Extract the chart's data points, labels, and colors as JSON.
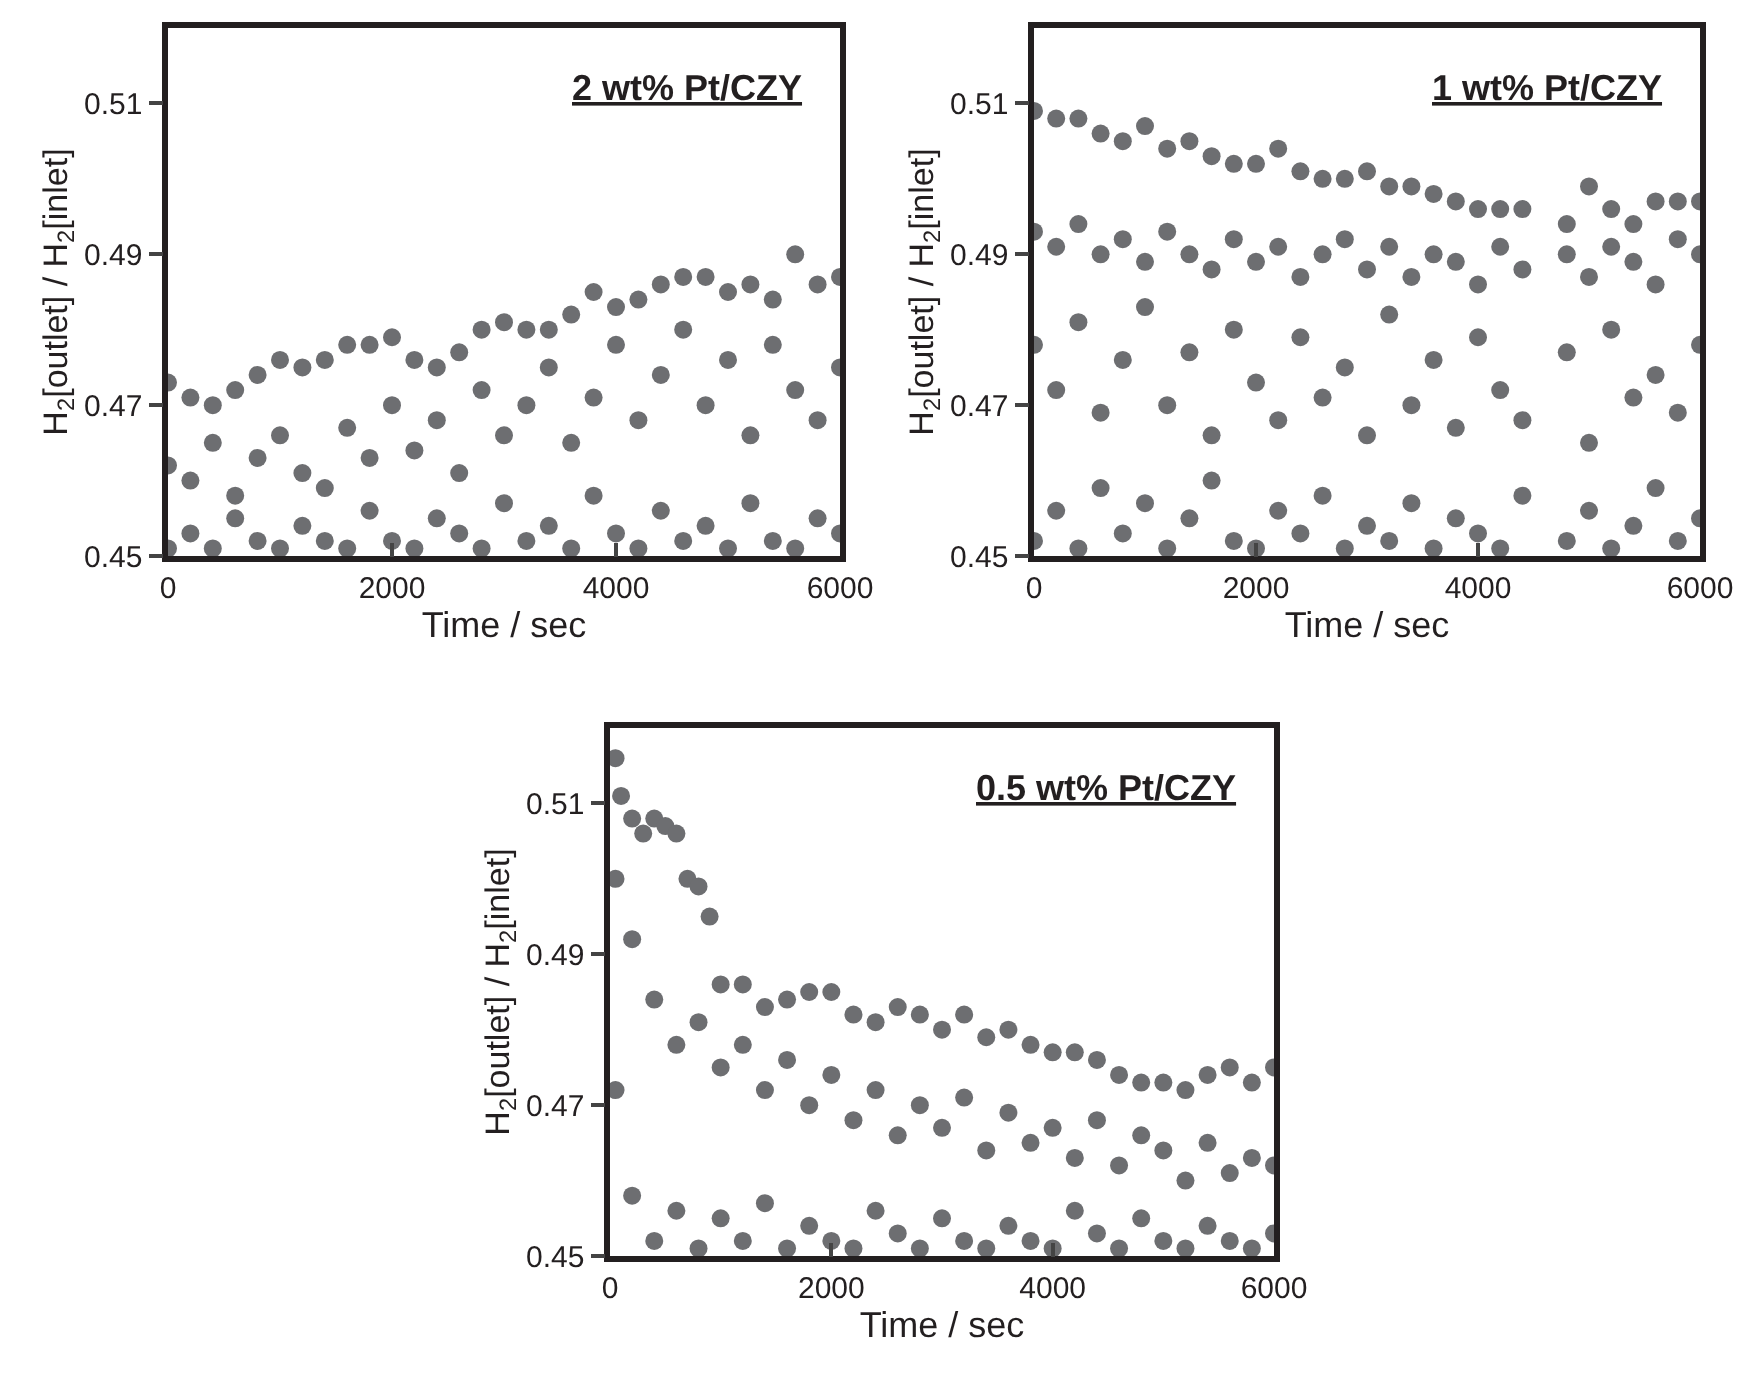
{
  "chart_data": [
    {
      "type": "scatter",
      "title": "2 wt% Pt/CZY",
      "xlabel": "Time / sec",
      "ylabel": "H$_{2}$[outlet] / H$_{2}$[inlet]",
      "xlim": [
        0,
        6000
      ],
      "xticks": [
        0,
        2000,
        4000,
        6000
      ],
      "ylim": [
        0.45,
        0.52
      ],
      "yticks": [
        0.45,
        0.47,
        0.49,
        0.51
      ],
      "marker": "circle",
      "series": [
        {
          "color": "#6d6e71",
          "x": [
            0,
            200,
            400,
            600,
            800,
            1000,
            1200,
            1400,
            1600,
            1800,
            2000,
            2200,
            2400,
            2600,
            2800,
            3000,
            3200,
            3400,
            3600,
            3800,
            4000,
            4200,
            4400,
            4600,
            4800,
            5000,
            5200,
            5400,
            5600,
            5800,
            6000,
            0,
            200,
            400,
            600,
            800,
            1000,
            1200,
            1400,
            1600,
            1800,
            2000,
            2200,
            2400,
            2600,
            2800,
            3000,
            3200,
            3400,
            3600,
            3800,
            4000,
            4200,
            4400,
            4600,
            4800,
            5000,
            5200,
            5400,
            5600,
            5800,
            6000,
            0,
            200,
            400,
            600,
            800,
            1000,
            1200,
            1400,
            1600,
            1800,
            2000,
            2200,
            2400,
            2600,
            2800,
            3000,
            3200,
            3400,
            3600,
            3800,
            4000,
            4200,
            4400,
            4600,
            4800,
            5000,
            5200,
            5400,
            5600,
            5800,
            6000
          ],
          "values": [
            0.473,
            0.471,
            0.47,
            0.472,
            0.474,
            0.476,
            0.475,
            0.476,
            0.478,
            0.478,
            0.479,
            0.476,
            0.475,
            0.477,
            0.48,
            0.481,
            0.48,
            0.48,
            0.482,
            0.485,
            0.483,
            0.484,
            0.486,
            0.487,
            0.487,
            0.485,
            0.486,
            0.484,
            0.49,
            0.486,
            0.487,
            0.462,
            0.46,
            0.465,
            0.458,
            0.463,
            0.466,
            0.461,
            0.459,
            0.467,
            0.463,
            0.47,
            0.464,
            0.468,
            0.461,
            0.472,
            0.466,
            0.47,
            0.475,
            0.465,
            0.471,
            0.478,
            0.468,
            0.474,
            0.48,
            0.47,
            0.476,
            0.466,
            0.478,
            0.472,
            0.468,
            0.475,
            0.451,
            0.453,
            0.451,
            0.455,
            0.452,
            0.451,
            0.454,
            0.452,
            0.451,
            0.456,
            0.452,
            0.451,
            0.455,
            0.453,
            0.451,
            0.457,
            0.452,
            0.454,
            0.451,
            0.458,
            0.453,
            0.451,
            0.456,
            0.452,
            0.454,
            0.451,
            0.457,
            0.452,
            0.451,
            0.455,
            0.453
          ]
        }
      ]
    },
    {
      "type": "scatter",
      "title": "1 wt% Pt/CZY",
      "xlabel": "Time / sec",
      "ylabel": "H$_{2}$[outlet] / H$_{2}$[inlet]",
      "xlim": [
        0,
        6000
      ],
      "xticks": [
        0,
        2000,
        4000,
        6000
      ],
      "ylim": [
        0.45,
        0.52
      ],
      "yticks": [
        0.45,
        0.47,
        0.49,
        0.51
      ],
      "marker": "circle",
      "series": [
        {
          "color": "#6d6e71",
          "x": [
            0,
            200,
            400,
            600,
            800,
            1000,
            1200,
            1400,
            1600,
            1800,
            2000,
            2200,
            2400,
            2600,
            2800,
            3000,
            3200,
            3400,
            3600,
            3800,
            4000,
            4200,
            4400,
            4800,
            5000,
            5200,
            5400,
            5600,
            5800,
            6000,
            0,
            200,
            400,
            600,
            800,
            1000,
            1200,
            1400,
            1600,
            1800,
            2000,
            2200,
            2400,
            2600,
            2800,
            3000,
            3200,
            3400,
            3600,
            3800,
            4000,
            4200,
            4400,
            4800,
            5000,
            5200,
            5400,
            5600,
            5800,
            6000,
            0,
            200,
            400,
            600,
            800,
            1000,
            1200,
            1400,
            1600,
            1800,
            2000,
            2200,
            2400,
            2600,
            2800,
            3000,
            3200,
            3400,
            3600,
            3800,
            4000,
            4200,
            4400,
            4800,
            5000,
            5200,
            5400,
            5600,
            5800,
            6000,
            0,
            200,
            400,
            600,
            800,
            1000,
            1200,
            1400,
            1600,
            1800,
            2000,
            2200,
            2400,
            2600,
            2800,
            3000,
            3200,
            3400,
            3600,
            3800,
            4000,
            4200,
            4400,
            4800,
            5000,
            5200,
            5400,
            5600,
            5800,
            6000
          ],
          "values": [
            0.509,
            0.508,
            0.508,
            0.506,
            0.505,
            0.507,
            0.504,
            0.505,
            0.503,
            0.502,
            0.502,
            0.504,
            0.501,
            0.5,
            0.5,
            0.501,
            0.499,
            0.499,
            0.498,
            0.497,
            0.496,
            0.496,
            0.496,
            0.494,
            0.499,
            0.496,
            0.494,
            0.497,
            0.497,
            0.497,
            0.493,
            0.491,
            0.494,
            0.49,
            0.492,
            0.489,
            0.493,
            0.49,
            0.488,
            0.492,
            0.489,
            0.491,
            0.487,
            0.49,
            0.492,
            0.488,
            0.491,
            0.487,
            0.49,
            0.489,
            0.486,
            0.491,
            0.488,
            0.49,
            0.487,
            0.491,
            0.489,
            0.486,
            0.492,
            0.49,
            0.478,
            0.472,
            0.481,
            0.469,
            0.476,
            0.483,
            0.47,
            0.477,
            0.466,
            0.48,
            0.473,
            0.468,
            0.479,
            0.471,
            0.475,
            0.466,
            0.482,
            0.47,
            0.476,
            0.467,
            0.479,
            0.472,
            0.468,
            0.477,
            0.465,
            0.48,
            0.471,
            0.474,
            0.469,
            0.478,
            0.452,
            0.456,
            0.451,
            0.459,
            0.453,
            0.457,
            0.451,
            0.455,
            0.46,
            0.452,
            0.451,
            0.456,
            0.453,
            0.458,
            0.451,
            0.454,
            0.452,
            0.457,
            0.451,
            0.455,
            0.453,
            0.451,
            0.458,
            0.452,
            0.456,
            0.451,
            0.454,
            0.459,
            0.452,
            0.455
          ]
        }
      ]
    },
    {
      "type": "scatter",
      "title": "0.5 wt% Pt/CZY",
      "xlabel": "Time / sec",
      "ylabel": "H$_{2}$[outlet] / H$_{2}$[inlet]",
      "xlim": [
        0,
        6000
      ],
      "xticks": [
        0,
        2000,
        4000,
        6000
      ],
      "ylim": [
        0.45,
        0.52
      ],
      "yticks": [
        0.45,
        0.47,
        0.49,
        0.51
      ],
      "marker": "circle",
      "series": [
        {
          "color": "#6d6e71",
          "x": [
            50,
            100,
            200,
            300,
            400,
            500,
            600,
            700,
            800,
            900,
            1000,
            1200,
            1400,
            1600,
            1800,
            2000,
            2200,
            2400,
            2600,
            2800,
            3000,
            3200,
            3400,
            3600,
            3800,
            4000,
            4200,
            4400,
            4600,
            4800,
            5000,
            5200,
            5400,
            5600,
            5800,
            6000,
            50,
            200,
            400,
            600,
            800,
            1000,
            1200,
            1400,
            1600,
            1800,
            2000,
            2200,
            2400,
            2600,
            2800,
            3000,
            3200,
            3400,
            3600,
            3800,
            4000,
            4200,
            4400,
            4600,
            4800,
            5000,
            5200,
            5400,
            5600,
            5800,
            6000,
            50,
            200,
            400,
            600,
            800,
            1000,
            1200,
            1400,
            1600,
            1800,
            2000,
            2200,
            2400,
            2600,
            2800,
            3000,
            3200,
            3400,
            3600,
            3800,
            4000,
            4200,
            4400,
            4600,
            4800,
            5000,
            5200,
            5400,
            5600,
            5800,
            6000
          ],
          "values": [
            0.516,
            0.511,
            0.508,
            0.506,
            0.508,
            0.507,
            0.506,
            0.5,
            0.499,
            0.495,
            0.486,
            0.486,
            0.483,
            0.484,
            0.485,
            0.485,
            0.482,
            0.481,
            0.483,
            0.482,
            0.48,
            0.482,
            0.479,
            0.48,
            0.478,
            0.477,
            0.477,
            0.476,
            0.474,
            0.473,
            0.473,
            0.472,
            0.474,
            0.475,
            0.473,
            0.475,
            0.5,
            0.492,
            0.484,
            0.478,
            0.481,
            0.475,
            0.478,
            0.472,
            0.476,
            0.47,
            0.474,
            0.468,
            0.472,
            0.466,
            0.47,
            0.467,
            0.471,
            0.464,
            0.469,
            0.465,
            0.467,
            0.463,
            0.468,
            0.462,
            0.466,
            0.464,
            0.46,
            0.465,
            0.461,
            0.463,
            0.462,
            0.472,
            0.458,
            0.452,
            0.456,
            0.451,
            0.455,
            0.452,
            0.457,
            0.451,
            0.454,
            0.452,
            0.451,
            0.456,
            0.453,
            0.451,
            0.455,
            0.452,
            0.451,
            0.454,
            0.452,
            0.451,
            0.456,
            0.453,
            0.451,
            0.455,
            0.452,
            0.451,
            0.454,
            0.452,
            0.451,
            0.453
          ]
        }
      ]
    }
  ]
}
